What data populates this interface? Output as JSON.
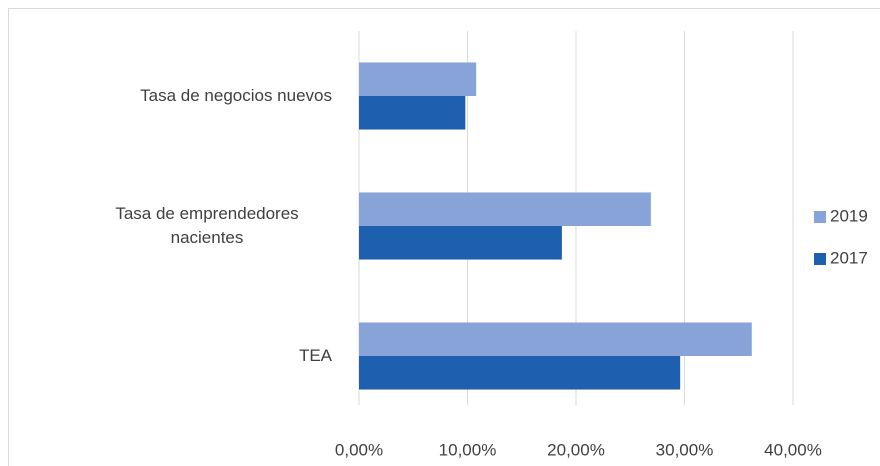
{
  "chart_data": {
    "type": "hbar",
    "categories": [
      "Tasa de negocios nuevos",
      "Tasa de emprendedores nacientes",
      "TEA"
    ],
    "series": [
      {
        "name": "2019",
        "color": "#87a3d8",
        "values": [
          10.8,
          26.9,
          36.2
        ]
      },
      {
        "name": "2017",
        "color": "#1f5fb0",
        "values": [
          9.8,
          18.7,
          29.6
        ]
      }
    ],
    "xlim": [
      0,
      40
    ],
    "xticks": [
      {
        "value": 0,
        "label": "0,00%"
      },
      {
        "value": 10,
        "label": "10,00%"
      },
      {
        "value": 20,
        "label": "20,00%"
      },
      {
        "value": 30,
        "label": "30,00%"
      },
      {
        "value": 40,
        "label": "40,00%"
      }
    ],
    "grid": true,
    "legend": "right"
  }
}
